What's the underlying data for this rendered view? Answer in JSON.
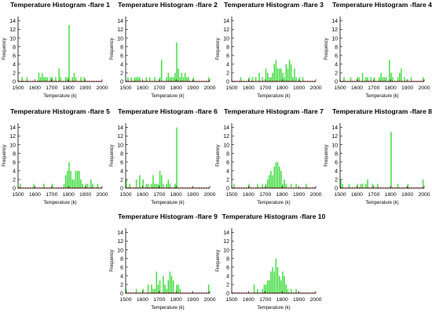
{
  "colors": {
    "bar": "#44dd44",
    "bar_edge": "#22aa22",
    "axis": "#000000",
    "zero_line": "#cc0000"
  },
  "chart_data": [
    {
      "type": "bar",
      "title": "Temperature Histogram -flare 1",
      "xlabel": "Temperature (k)",
      "ylabel": "Frequency",
      "xlim": [
        1500,
        2000
      ],
      "ylim": [
        0,
        15
      ],
      "xticks": [
        1500,
        1600,
        1700,
        1800,
        1900,
        2000
      ],
      "yticks": [
        0,
        2,
        4,
        6,
        8,
        10,
        12,
        14
      ],
      "grid": false,
      "bar_width": 10,
      "bins": [
        [
          1520,
          1
        ],
        [
          1550,
          1
        ],
        [
          1620,
          2
        ],
        [
          1630,
          1
        ],
        [
          1640,
          2
        ],
        [
          1650,
          1
        ],
        [
          1660,
          1
        ],
        [
          1670,
          1
        ],
        [
          1690,
          1
        ],
        [
          1700,
          1
        ],
        [
          1720,
          1
        ],
        [
          1740,
          3
        ],
        [
          1750,
          1
        ],
        [
          1780,
          1
        ],
        [
          1790,
          1
        ],
        [
          1800,
          13
        ],
        [
          1820,
          1
        ],
        [
          1830,
          2
        ],
        [
          1840,
          1
        ],
        [
          1870,
          1
        ],
        [
          1890,
          1
        ]
      ]
    },
    {
      "type": "bar",
      "title": "Temperature Histogram -flare 2",
      "xlabel": "Temperature (k)",
      "ylabel": "Frequency",
      "xlim": [
        1500,
        2000
      ],
      "ylim": [
        0,
        15
      ],
      "xticks": [
        1500,
        1600,
        1700,
        1800,
        1900,
        2000
      ],
      "yticks": [
        0,
        2,
        4,
        6,
        8,
        10,
        12,
        14
      ],
      "grid": false,
      "bar_width": 10,
      "bins": [
        [
          1510,
          1
        ],
        [
          1530,
          1
        ],
        [
          1550,
          1
        ],
        [
          1560,
          1
        ],
        [
          1570,
          1
        ],
        [
          1580,
          1
        ],
        [
          1620,
          1
        ],
        [
          1640,
          1
        ],
        [
          1670,
          1
        ],
        [
          1700,
          1
        ],
        [
          1710,
          5
        ],
        [
          1740,
          1
        ],
        [
          1750,
          2
        ],
        [
          1760,
          1
        ],
        [
          1770,
          1
        ],
        [
          1780,
          1
        ],
        [
          1790,
          2
        ],
        [
          1800,
          9
        ],
        [
          1810,
          3
        ],
        [
          1820,
          1
        ],
        [
          1830,
          2
        ],
        [
          1840,
          1
        ],
        [
          1850,
          2
        ],
        [
          1860,
          1
        ],
        [
          1870,
          1
        ],
        [
          1900,
          1
        ],
        [
          1990,
          1
        ]
      ]
    },
    {
      "type": "bar",
      "title": "Temperature Histogram -flare 3",
      "xlabel": "Temperature (k)",
      "ylabel": "Frequency",
      "xlim": [
        1500,
        2000
      ],
      "ylim": [
        0,
        15
      ],
      "xticks": [
        1500,
        1600,
        1700,
        1800,
        1900,
        2000
      ],
      "yticks": [
        0,
        2,
        4,
        6,
        8,
        10,
        12,
        14
      ],
      "grid": false,
      "bar_width": 10,
      "bins": [
        [
          1550,
          1
        ],
        [
          1600,
          1
        ],
        [
          1620,
          1
        ],
        [
          1640,
          1
        ],
        [
          1660,
          2
        ],
        [
          1680,
          1
        ],
        [
          1700,
          3
        ],
        [
          1710,
          2
        ],
        [
          1720,
          1
        ],
        [
          1730,
          1
        ],
        [
          1740,
          2
        ],
        [
          1750,
          4
        ],
        [
          1760,
          5
        ],
        [
          1770,
          3
        ],
        [
          1780,
          3
        ],
        [
          1790,
          3
        ],
        [
          1800,
          2
        ],
        [
          1810,
          1
        ],
        [
          1820,
          4
        ],
        [
          1830,
          3
        ],
        [
          1840,
          5
        ],
        [
          1850,
          4
        ],
        [
          1860,
          1
        ],
        [
          1870,
          3
        ],
        [
          1880,
          1
        ],
        [
          1900,
          1
        ],
        [
          1920,
          1
        ]
      ]
    },
    {
      "type": "bar",
      "title": "Temperature Histogram -flare 4",
      "xlabel": "Temperature (k)",
      "ylabel": "Frequency",
      "xlim": [
        1500,
        2000
      ],
      "ylim": [
        0,
        15
      ],
      "xticks": [
        1500,
        1600,
        1700,
        1800,
        1900,
        2000
      ],
      "yticks": [
        0,
        2,
        4,
        6,
        8,
        10,
        12,
        14
      ],
      "grid": false,
      "bar_width": 10,
      "bins": [
        [
          1520,
          1
        ],
        [
          1560,
          1
        ],
        [
          1600,
          1
        ],
        [
          1610,
          1
        ],
        [
          1630,
          2
        ],
        [
          1650,
          1
        ],
        [
          1660,
          1
        ],
        [
          1680,
          1
        ],
        [
          1700,
          1
        ],
        [
          1730,
          1
        ],
        [
          1740,
          2
        ],
        [
          1750,
          1
        ],
        [
          1760,
          1
        ],
        [
          1770,
          1
        ],
        [
          1790,
          5
        ],
        [
          1800,
          2
        ],
        [
          1810,
          1
        ],
        [
          1840,
          1
        ],
        [
          1850,
          2
        ],
        [
          1860,
          3
        ],
        [
          1880,
          1
        ],
        [
          1920,
          1
        ],
        [
          1990,
          1
        ]
      ]
    },
    {
      "type": "bar",
      "title": "Temperature Histogram -flare 5",
      "xlabel": "Temperature (k)",
      "ylabel": "Frequency",
      "xlim": [
        1500,
        2000
      ],
      "ylim": [
        0,
        15
      ],
      "xticks": [
        1500,
        1600,
        1700,
        1800,
        1900,
        2000
      ],
      "yticks": [
        0,
        2,
        4,
        6,
        8,
        10,
        12,
        14
      ],
      "grid": false,
      "bar_width": 10,
      "bins": [
        [
          1510,
          1
        ],
        [
          1590,
          1
        ],
        [
          1650,
          1
        ],
        [
          1700,
          1
        ],
        [
          1770,
          1
        ],
        [
          1780,
          3
        ],
        [
          1790,
          4
        ],
        [
          1800,
          6
        ],
        [
          1810,
          4
        ],
        [
          1820,
          2
        ],
        [
          1830,
          2
        ],
        [
          1840,
          4
        ],
        [
          1850,
          4
        ],
        [
          1860,
          4
        ],
        [
          1870,
          2
        ],
        [
          1880,
          1
        ],
        [
          1900,
          1
        ],
        [
          1910,
          1
        ],
        [
          1930,
          2
        ],
        [
          1940,
          1
        ],
        [
          1970,
          1
        ]
      ]
    },
    {
      "type": "bar",
      "title": "Temperature Histogram -flare 6",
      "xlabel": "Temperature (k)",
      "ylabel": "Frequency",
      "xlim": [
        1500,
        2000
      ],
      "ylim": [
        0,
        15
      ],
      "xticks": [
        1500,
        1600,
        1700,
        1800,
        1900,
        2000
      ],
      "yticks": [
        0,
        2,
        4,
        6,
        8,
        10,
        12,
        14
      ],
      "grid": false,
      "bar_width": 10,
      "bins": [
        [
          1500,
          2
        ],
        [
          1520,
          1
        ],
        [
          1560,
          2
        ],
        [
          1580,
          3
        ],
        [
          1600,
          2
        ],
        [
          1620,
          1
        ],
        [
          1630,
          1
        ],
        [
          1650,
          1
        ],
        [
          1660,
          3
        ],
        [
          1670,
          1
        ],
        [
          1680,
          1
        ],
        [
          1690,
          1
        ],
        [
          1700,
          4
        ],
        [
          1710,
          3
        ],
        [
          1720,
          1
        ],
        [
          1740,
          1
        ],
        [
          1750,
          2
        ],
        [
          1760,
          1
        ],
        [
          1790,
          1
        ],
        [
          1800,
          14
        ]
      ]
    },
    {
      "type": "bar",
      "title": "Temperature Histogram -flare 7",
      "xlabel": "Temperature (k)",
      "ylabel": "Frequency",
      "xlim": [
        1500,
        2000
      ],
      "ylim": [
        0,
        15
      ],
      "xticks": [
        1500,
        1600,
        1700,
        1800,
        1900,
        2000
      ],
      "yticks": [
        0,
        2,
        4,
        6,
        8,
        10,
        12,
        14
      ],
      "grid": false,
      "bar_width": 10,
      "bins": [
        [
          1510,
          1
        ],
        [
          1600,
          1
        ],
        [
          1650,
          1
        ],
        [
          1680,
          1
        ],
        [
          1700,
          1
        ],
        [
          1710,
          2
        ],
        [
          1720,
          3
        ],
        [
          1730,
          4
        ],
        [
          1740,
          3
        ],
        [
          1750,
          5
        ],
        [
          1760,
          6
        ],
        [
          1770,
          6
        ],
        [
          1780,
          5
        ],
        [
          1790,
          4
        ],
        [
          1800,
          1
        ],
        [
          1810,
          2
        ],
        [
          1820,
          1
        ],
        [
          1850,
          1
        ],
        [
          1880,
          1
        ],
        [
          1940,
          1
        ]
      ]
    },
    {
      "type": "bar",
      "title": "Temperature Histogram -flare 8",
      "xlabel": "Temperature (k)",
      "ylabel": "Frequency",
      "xlim": [
        1500,
        2000
      ],
      "ylim": [
        0,
        15
      ],
      "xticks": [
        1500,
        1600,
        1700,
        1800,
        1900,
        2000
      ],
      "yticks": [
        0,
        2,
        4,
        6,
        8,
        10,
        12,
        14
      ],
      "grid": false,
      "bar_width": 10,
      "bins": [
        [
          1500,
          2
        ],
        [
          1510,
          1
        ],
        [
          1550,
          1
        ],
        [
          1600,
          1
        ],
        [
          1620,
          1
        ],
        [
          1630,
          1
        ],
        [
          1650,
          1
        ],
        [
          1660,
          2
        ],
        [
          1690,
          1
        ],
        [
          1720,
          1
        ],
        [
          1800,
          13
        ],
        [
          1840,
          1
        ],
        [
          1900,
          1
        ],
        [
          1990,
          2
        ]
      ]
    },
    {
      "type": "bar",
      "title": "Temperature Histogram -flare 9",
      "xlabel": "Temperature (k)",
      "ylabel": "Frequency",
      "xlim": [
        1500,
        2000
      ],
      "ylim": [
        0,
        15
      ],
      "xticks": [
        1500,
        1600,
        1700,
        1800,
        1900,
        2000
      ],
      "yticks": [
        0,
        2,
        4,
        6,
        8,
        10,
        12,
        14
      ],
      "grid": false,
      "bar_width": 10,
      "bins": [
        [
          1500,
          1
        ],
        [
          1560,
          1
        ],
        [
          1600,
          1
        ],
        [
          1630,
          2
        ],
        [
          1650,
          2
        ],
        [
          1660,
          1
        ],
        [
          1670,
          1
        ],
        [
          1680,
          5
        ],
        [
          1690,
          2
        ],
        [
          1700,
          3
        ],
        [
          1720,
          4
        ],
        [
          1730,
          2
        ],
        [
          1740,
          1
        ],
        [
          1750,
          3
        ],
        [
          1760,
          5
        ],
        [
          1770,
          4
        ],
        [
          1780,
          3
        ],
        [
          1800,
          2
        ],
        [
          1810,
          2
        ],
        [
          1820,
          1
        ],
        [
          1990,
          2
        ]
      ]
    },
    {
      "type": "bar",
      "title": "Temperature Histogram -flare 10",
      "xlabel": "Temperature (k)",
      "ylabel": "Frequency",
      "xlim": [
        1500,
        2000
      ],
      "ylim": [
        0,
        15
      ],
      "xticks": [
        1500,
        1600,
        1700,
        1800,
        1900,
        2000
      ],
      "yticks": [
        0,
        2,
        4,
        6,
        8,
        10,
        12,
        14
      ],
      "grid": false,
      "bar_width": 10,
      "bins": [
        [
          1630,
          2
        ],
        [
          1650,
          1
        ],
        [
          1680,
          1
        ],
        [
          1690,
          2
        ],
        [
          1700,
          2
        ],
        [
          1710,
          3
        ],
        [
          1720,
          3
        ],
        [
          1730,
          5
        ],
        [
          1740,
          6
        ],
        [
          1750,
          5
        ],
        [
          1760,
          8
        ],
        [
          1770,
          6
        ],
        [
          1780,
          4
        ],
        [
          1790,
          3
        ],
        [
          1800,
          5
        ],
        [
          1810,
          4
        ],
        [
          1820,
          2
        ],
        [
          1830,
          1
        ],
        [
          1850,
          1
        ],
        [
          1880,
          1
        ]
      ]
    }
  ]
}
